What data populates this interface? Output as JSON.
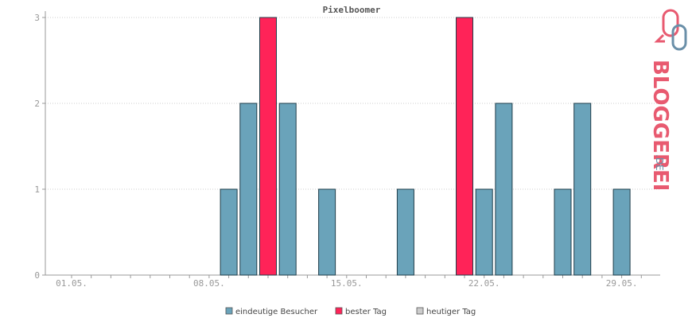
{
  "chart_data": {
    "type": "bar",
    "title": "Pixelboomer",
    "xlabel": "",
    "ylabel": "",
    "ylim": [
      0,
      3
    ],
    "y_ticks": [
      "0",
      "1",
      "2",
      "3"
    ],
    "x_tick_labels": [
      "01.05.",
      "08.05.",
      "15.05.",
      "22.05.",
      "29.05."
    ],
    "x_tick_days": [
      1,
      8,
      15,
      22,
      29
    ],
    "grid": true,
    "legend_position": "bottom",
    "series": [
      {
        "name": "eindeutige Besucher",
        "color": "#6aa3ba",
        "points": [
          {
            "day": 9,
            "value": 1
          },
          {
            "day": 10,
            "value": 2
          },
          {
            "day": 12,
            "value": 2
          },
          {
            "day": 14,
            "value": 1
          },
          {
            "day": 18,
            "value": 1
          },
          {
            "day": 22,
            "value": 1
          },
          {
            "day": 23,
            "value": 2
          },
          {
            "day": 26,
            "value": 1
          },
          {
            "day": 27,
            "value": 2
          },
          {
            "day": 29,
            "value": 1
          }
        ]
      },
      {
        "name": "bester Tag",
        "color": "#ff2358",
        "points": [
          {
            "day": 11,
            "value": 3
          },
          {
            "day": 21,
            "value": 3
          }
        ]
      },
      {
        "name": "heutiger Tag",
        "color": "#cccccc",
        "points": []
      }
    ]
  },
  "logo": {
    "main": "BLOGGEREI",
    "suffix": ".DE",
    "colors": {
      "primary": "#e85a70",
      "secondary": "#6a8fa8"
    }
  }
}
